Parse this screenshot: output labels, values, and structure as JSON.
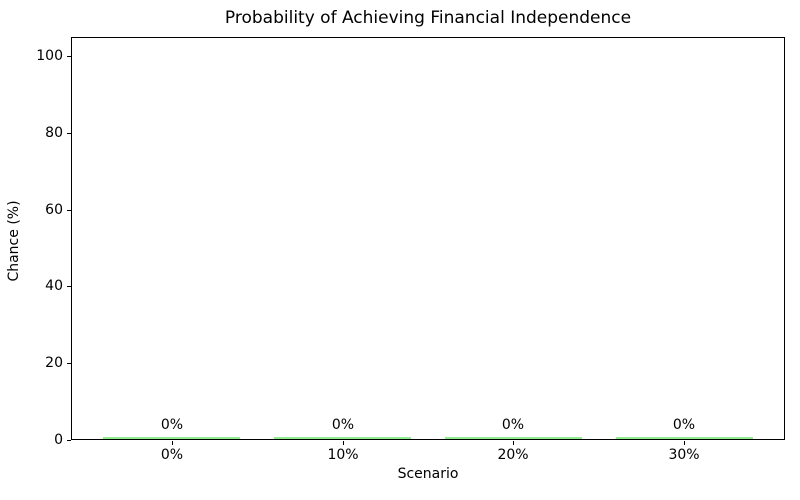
{
  "chart_data": {
    "type": "bar",
    "title": "Probability of Achieving Financial Independence",
    "xlabel": "Scenario",
    "ylabel": "Chance (%)",
    "categories": [
      "0%",
      "10%",
      "20%",
      "30%"
    ],
    "values": [
      0,
      0,
      0,
      0
    ],
    "bar_labels": [
      "0%",
      "0%",
      "0%",
      "0%"
    ],
    "yticks": [
      0,
      20,
      40,
      60,
      80,
      100
    ],
    "ylim": [
      0,
      105
    ],
    "xlim_units": [
      -0.59,
      3.59
    ],
    "bar_width_units": 0.8,
    "bar_color": "#90EE90",
    "axis_color": "#000000",
    "text_color": "#000000",
    "grid": false,
    "legend_position": "none",
    "background_color": "#ffffff"
  }
}
